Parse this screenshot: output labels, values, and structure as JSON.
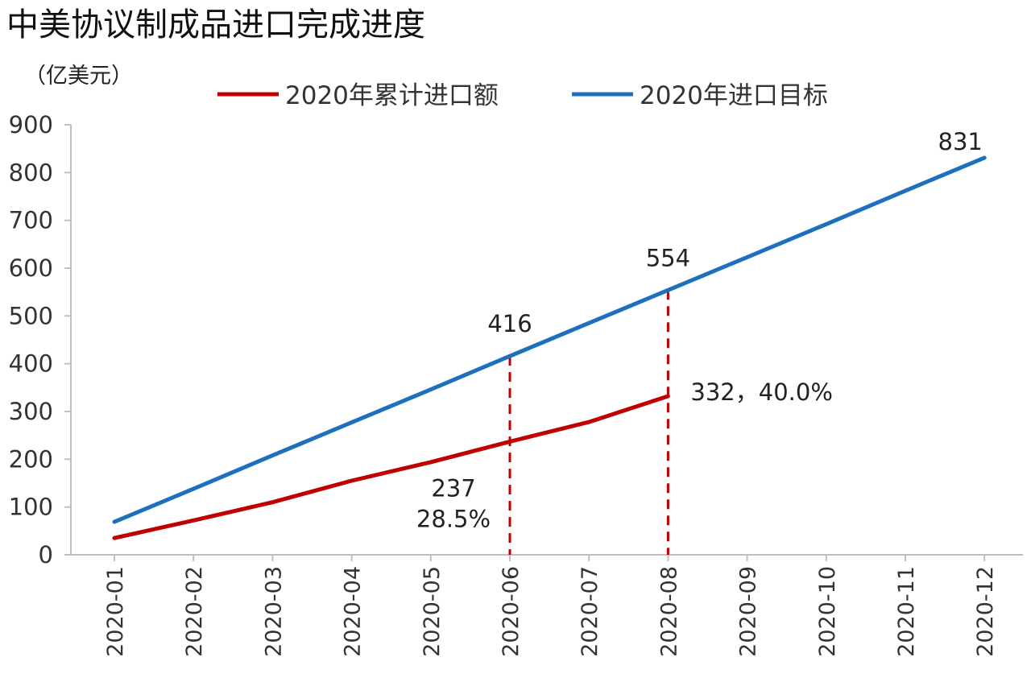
{
  "chart_data": {
    "type": "line",
    "title": "中美协议制成品进口完成进度",
    "unit_label": "（亿美元）",
    "categories": [
      "2020-01",
      "2020-02",
      "2020-03",
      "2020-04",
      "2020-05",
      "2020-06",
      "2020-07",
      "2020-08",
      "2020-09",
      "2020-10",
      "2020-11",
      "2020-12"
    ],
    "ylim": [
      0,
      900
    ],
    "yticks": [
      0,
      100,
      200,
      300,
      400,
      500,
      600,
      700,
      800,
      900
    ],
    "grid": false,
    "legend_position": "top",
    "series": [
      {
        "name": "2020年累计进口额",
        "color": "#c00000",
        "values": [
          35,
          72,
          110,
          155,
          194,
          237,
          278,
          332,
          null,
          null,
          null,
          null
        ]
      },
      {
        "name": "2020年进口目标",
        "color": "#1f6fbf",
        "values": [
          69,
          138,
          208,
          277,
          346,
          416,
          485,
          554,
          623,
          692,
          762,
          831
        ]
      }
    ],
    "reference_lines": [
      {
        "category": "2020-06",
        "from": 0,
        "to": 416,
        "color": "#c00000",
        "style": "dashed"
      },
      {
        "category": "2020-08",
        "from": 0,
        "to": 554,
        "color": "#c00000",
        "style": "dashed"
      }
    ],
    "annotations": [
      {
        "id": "ann-416",
        "category": "2020-06",
        "value": 416,
        "lines": [
          "416"
        ]
      },
      {
        "id": "ann-554",
        "category": "2020-08",
        "value": 554,
        "lines": [
          "554"
        ]
      },
      {
        "id": "ann-831",
        "category": "2020-12",
        "value": 831,
        "lines": [
          "831"
        ]
      },
      {
        "id": "ann-332",
        "category": "2020-08",
        "value": 332,
        "lines": [
          "332，40.0%"
        ]
      },
      {
        "id": "ann-237",
        "category": "2020-06",
        "value": 237,
        "lines": [
          "237",
          "28.5%"
        ]
      }
    ]
  }
}
